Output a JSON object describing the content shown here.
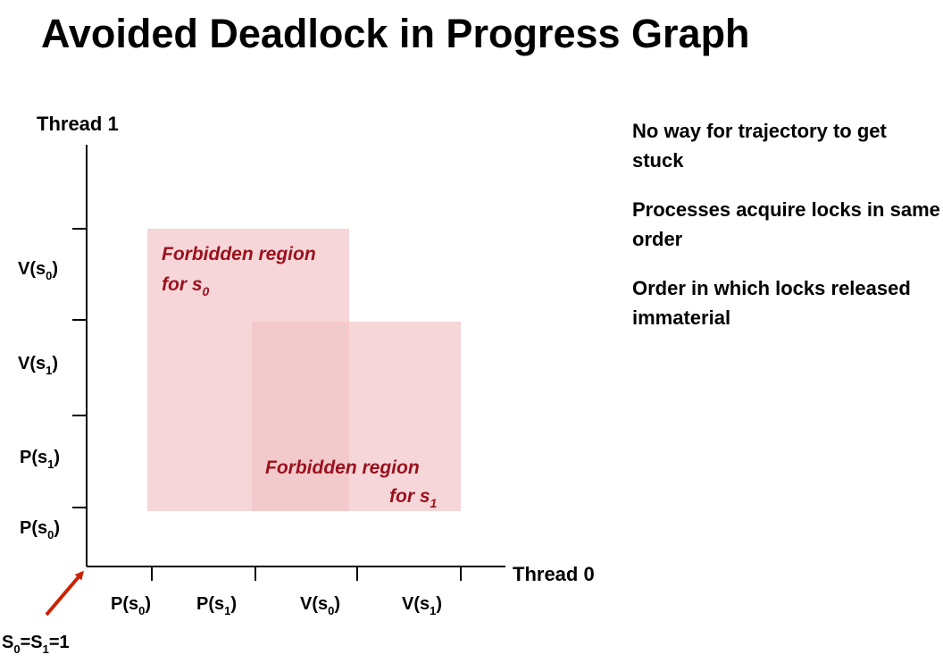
{
  "title": "Avoided Deadlock in Progress Graph",
  "bullets": [
    "No way for trajectory to get stuck",
    "Processes acquire locks in same order",
    "Order in which locks released immaterial"
  ],
  "graph": {
    "y_axis_title": "Thread 1",
    "x_axis_title": "Thread 0",
    "x_ticks": [
      {
        "op": "P(s",
        "sub": "0",
        "close": ")"
      },
      {
        "op": "P(s",
        "sub": "1",
        "close": ")"
      },
      {
        "op": "V(s",
        "sub": "0",
        "close": ")"
      },
      {
        "op": "V(s",
        "sub": "1",
        "close": ")"
      }
    ],
    "y_ticks": [
      {
        "op": "P(s",
        "sub": "0",
        "close": ")"
      },
      {
        "op": "P(s",
        "sub": "1",
        "close": ")"
      },
      {
        "op": "V(s",
        "sub": "1",
        "close": ")"
      },
      {
        "op": "V(s",
        "sub": "0",
        "close": ")"
      }
    ],
    "region_s0": {
      "line1": "Forbidden region",
      "line2_prefix": "for s",
      "line2_sub": "0"
    },
    "region_s1": {
      "line1": "Forbidden region",
      "line2_prefix": "for s",
      "line2_sub": "1"
    },
    "origin": {
      "a": "S",
      "a_sub": "0",
      "mid": "=S",
      "b_sub": "1",
      "end": "=1"
    },
    "colors": {
      "region_fill": "#f2c4c8",
      "region_text": "#9b111e",
      "arrow": "#cc2200"
    }
  }
}
